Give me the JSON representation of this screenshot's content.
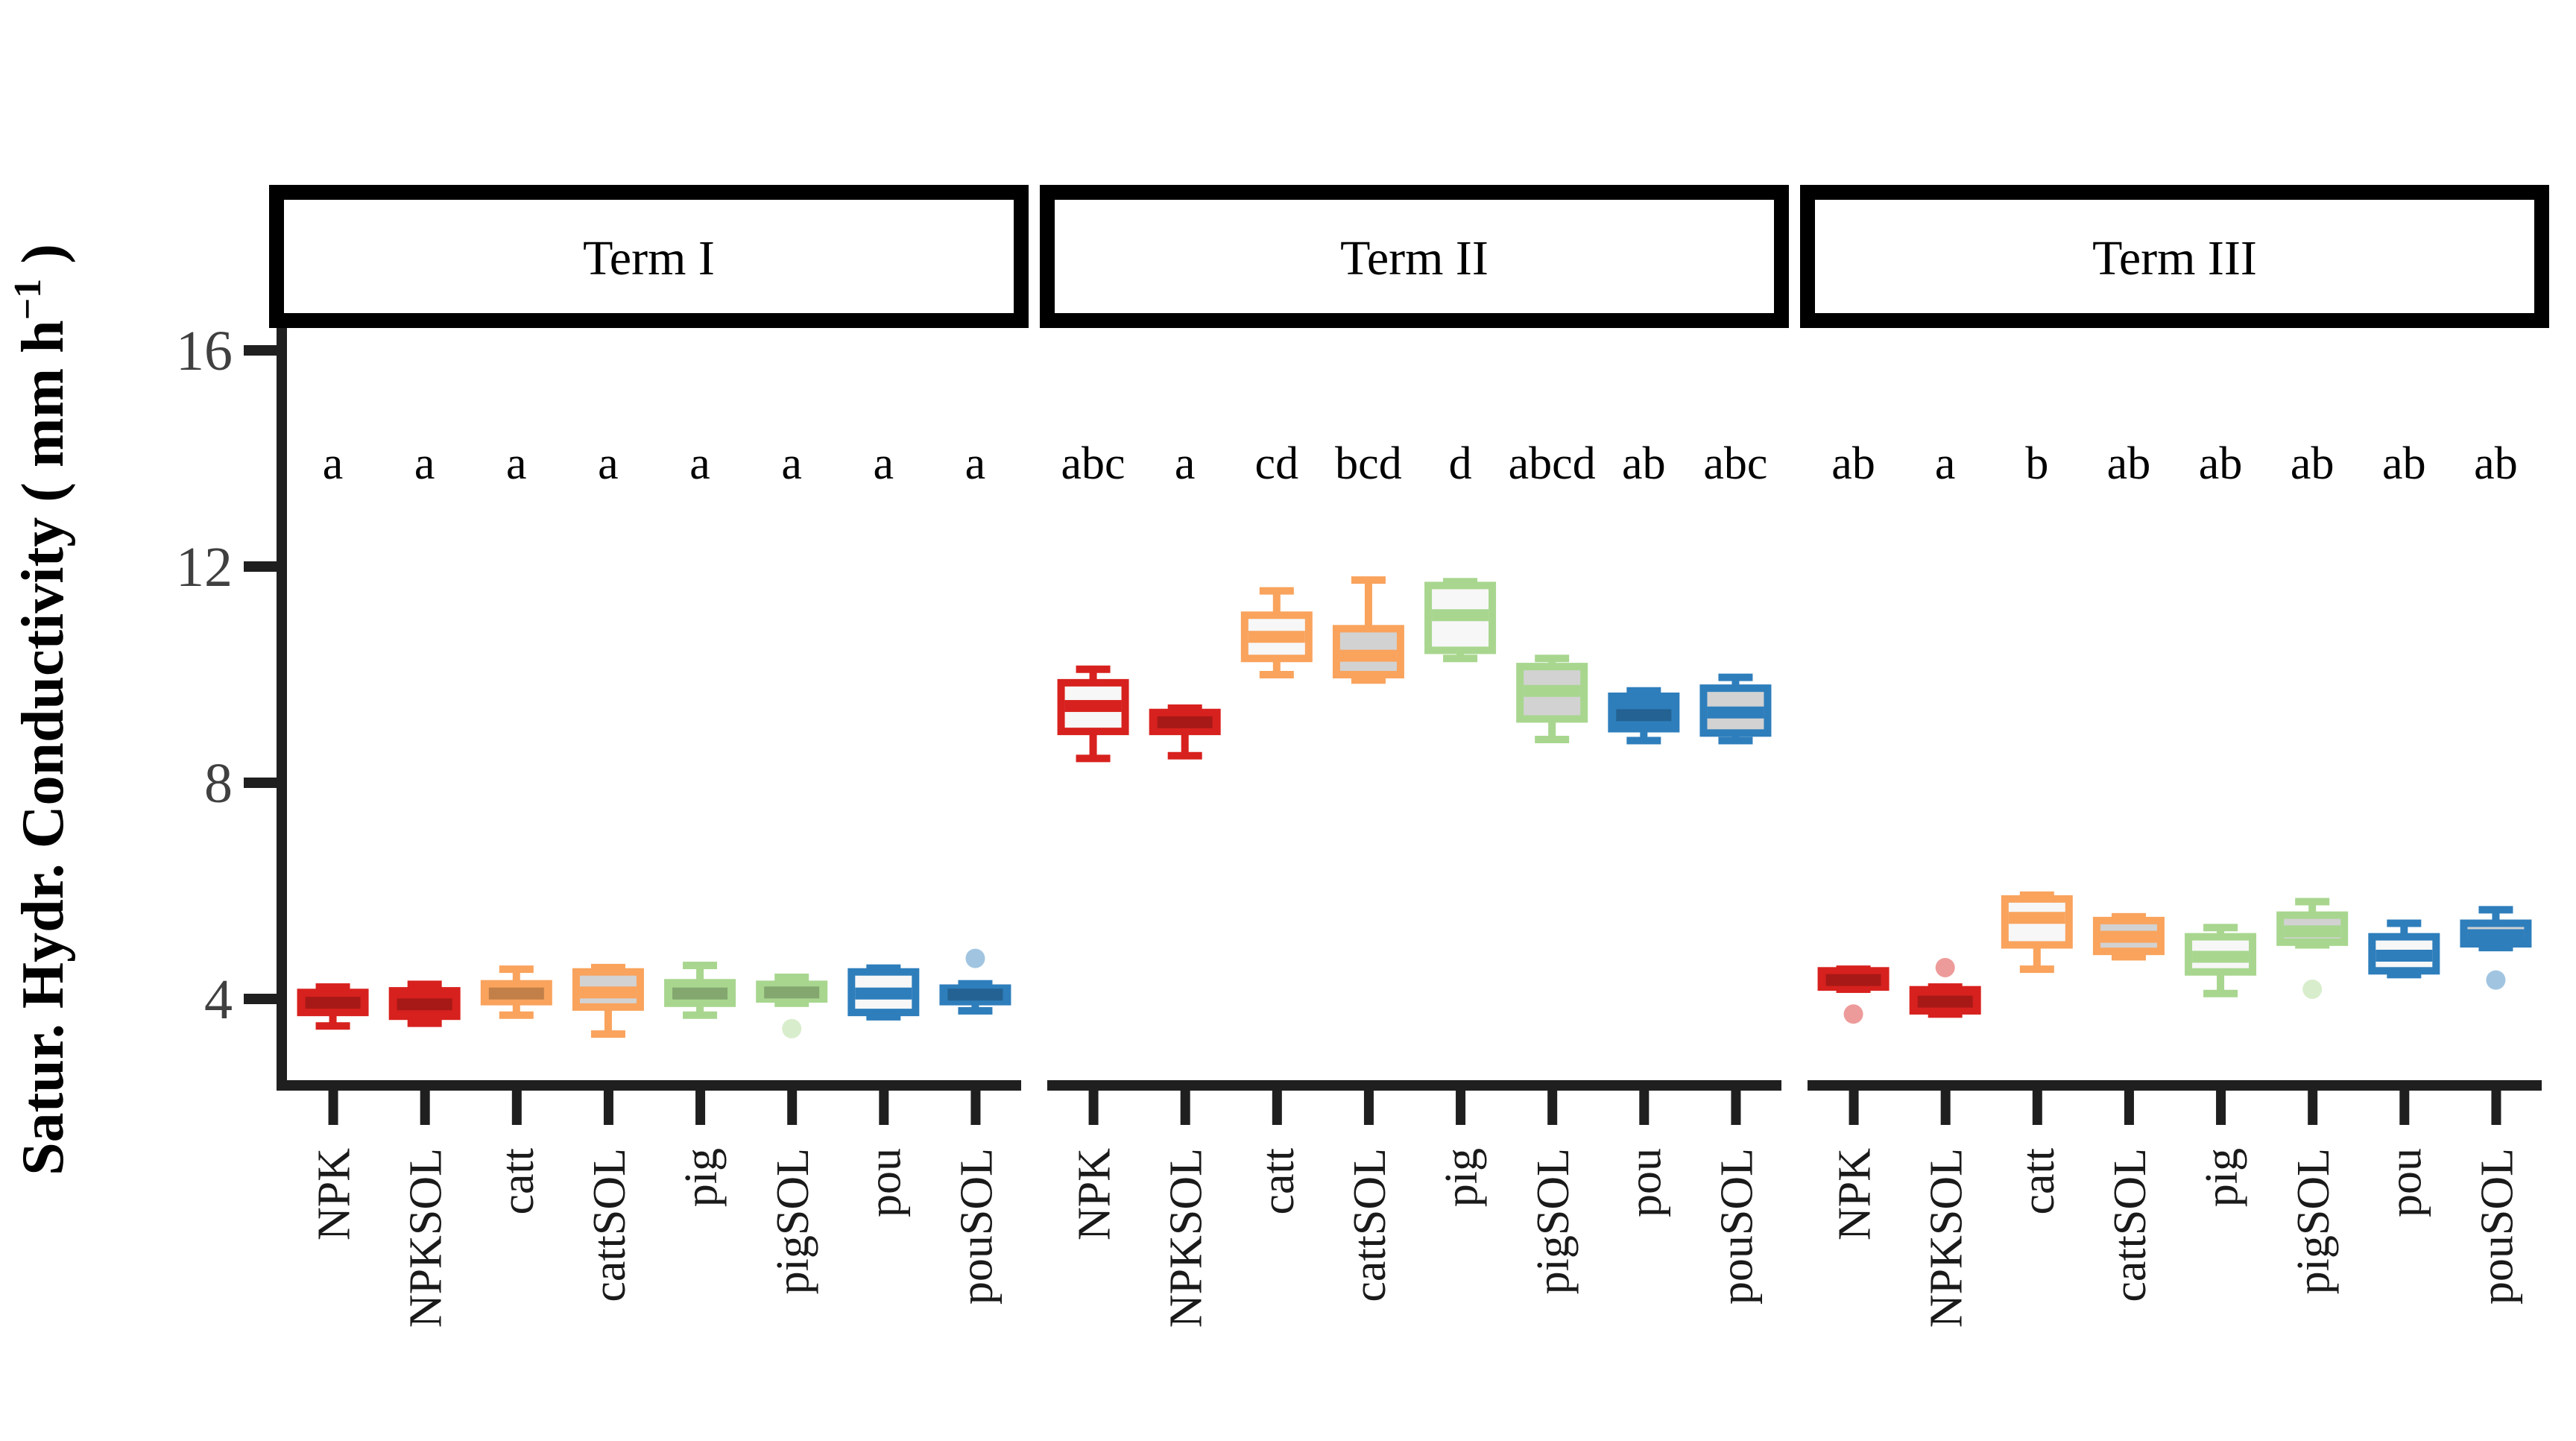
{
  "figure": {
    "background": "#ffffff",
    "axis_color": "#1f1f1f",
    "tick_label_color": "#404040",
    "text_color": "#000000"
  },
  "chart_data": {
    "type": "boxplot",
    "title": "",
    "xlabel": "",
    "ylabel_parts": {
      "pre": "Satur. Hydr. Conductivity ( mm  h",
      "sup": "−1",
      "post": " )"
    },
    "ylabel_plain": "Satur. Hydr. Conductivity ( mm h-1 )",
    "y_ticks": [
      4,
      8,
      12,
      16
    ],
    "ylim": [
      2.4,
      16.6
    ],
    "grid": false,
    "legend": "none",
    "categories": [
      "NPK",
      "NPKSOL",
      "catt",
      "cattSOL",
      "pig",
      "pigSOL",
      "pou",
      "pouSOL"
    ],
    "group_colors": {
      "NPK": "#d7211e",
      "NPKSOL": "#d7211e",
      "catt": "#f9a35d",
      "cattSOL": "#f9a35d",
      "pig": "#a8d68f",
      "pigSOL": "#a8d68f",
      "pou": "#2e7ebc",
      "pouSOL": "#2e7ebc"
    },
    "fill_styles": {
      "white": "#f7f7f7",
      "gray": "#d2d2d2"
    },
    "panels": [
      {
        "label": "Term I",
        "boxes": [
          {
            "cat": "NPK",
            "letter": "a",
            "fill": "solid",
            "lo": 3.5,
            "q1": 3.75,
            "med": 3.93,
            "q3": 4.12,
            "hi": 4.22,
            "outliers": []
          },
          {
            "cat": "NPKSOL",
            "letter": "a",
            "fill": "solid",
            "lo": 3.55,
            "q1": 3.68,
            "med": 3.9,
            "q3": 4.15,
            "hi": 4.27,
            "outliers": []
          },
          {
            "cat": "catt",
            "letter": "a",
            "fill": "solid",
            "lo": 3.7,
            "q1": 3.95,
            "med": 4.1,
            "q3": 4.28,
            "hi": 4.55,
            "outliers": []
          },
          {
            "cat": "cattSOL",
            "letter": "a",
            "fill": "gray",
            "lo": 3.35,
            "q1": 3.85,
            "med": 4.12,
            "q3": 4.5,
            "hi": 4.58,
            "outliers": []
          },
          {
            "cat": "pig",
            "letter": "a",
            "fill": "solid",
            "lo": 3.7,
            "q1": 3.92,
            "med": 4.1,
            "q3": 4.3,
            "hi": 4.62,
            "outliers": []
          },
          {
            "cat": "pigSOL",
            "letter": "a",
            "fill": "solid",
            "lo": 3.92,
            "q1": 4.0,
            "med": 4.12,
            "q3": 4.27,
            "hi": 4.4,
            "outliers": [
              3.45
            ]
          },
          {
            "cat": "pou",
            "letter": "a",
            "fill": "white",
            "lo": 3.67,
            "q1": 3.75,
            "med": 4.1,
            "q3": 4.5,
            "hi": 4.57,
            "outliers": []
          },
          {
            "cat": "pouSOL",
            "letter": "a",
            "fill": "solid",
            "lo": 3.78,
            "q1": 3.95,
            "med": 4.08,
            "q3": 4.2,
            "hi": 4.28,
            "outliers": [
              4.75
            ]
          }
        ]
      },
      {
        "label": "Term II",
        "boxes": [
          {
            "cat": "NPK",
            "letter": "abc",
            "fill": "white",
            "lo": 8.45,
            "q1": 8.95,
            "med": 9.42,
            "q3": 9.85,
            "hi": 10.1,
            "outliers": []
          },
          {
            "cat": "NPKSOL",
            "letter": "a",
            "fill": "solid",
            "lo": 8.5,
            "q1": 8.95,
            "med": 9.12,
            "q3": 9.3,
            "hi": 9.38,
            "outliers": []
          },
          {
            "cat": "catt",
            "letter": "cd",
            "fill": "white",
            "lo": 10.0,
            "q1": 10.3,
            "med": 10.7,
            "q3": 11.1,
            "hi": 11.55,
            "outliers": []
          },
          {
            "cat": "cattSOL",
            "letter": "bcd",
            "fill": "gray",
            "lo": 9.9,
            "q1": 10.0,
            "med": 10.35,
            "q3": 10.85,
            "hi": 11.75,
            "outliers": []
          },
          {
            "cat": "pig",
            "letter": "d",
            "fill": "white",
            "lo": 10.3,
            "q1": 10.45,
            "med": 11.1,
            "q3": 11.65,
            "hi": 11.72,
            "outliers": []
          },
          {
            "cat": "pigSOL",
            "letter": "abcd",
            "fill": "gray",
            "lo": 8.8,
            "q1": 9.18,
            "med": 9.7,
            "q3": 10.15,
            "hi": 10.3,
            "outliers": []
          },
          {
            "cat": "pou",
            "letter": "ab",
            "fill": "solid",
            "lo": 8.78,
            "q1": 9.0,
            "med": 9.25,
            "q3": 9.6,
            "hi": 9.7,
            "outliers": []
          },
          {
            "cat": "pouSOL",
            "letter": "abc",
            "fill": "gray",
            "lo": 8.78,
            "q1": 8.92,
            "med": 9.3,
            "q3": 9.75,
            "hi": 9.95,
            "outliers": []
          }
        ]
      },
      {
        "label": "Term III",
        "boxes": [
          {
            "cat": "NPK",
            "letter": "ab",
            "fill": "solid",
            "lo": 4.18,
            "q1": 4.22,
            "med": 4.35,
            "q3": 4.52,
            "hi": 4.55,
            "outliers": [
              3.72
            ]
          },
          {
            "cat": "NPKSOL",
            "letter": "a",
            "fill": "solid",
            "lo": 3.72,
            "q1": 3.78,
            "med": 3.95,
            "q3": 4.17,
            "hi": 4.22,
            "outliers": [
              4.58
            ]
          },
          {
            "cat": "catt",
            "letter": "b",
            "fill": "white",
            "lo": 4.55,
            "q1": 5.0,
            "med": 5.5,
            "q3": 5.85,
            "hi": 5.92,
            "outliers": []
          },
          {
            "cat": "cattSOL",
            "letter": "ab",
            "fill": "gray",
            "lo": 4.78,
            "q1": 4.88,
            "med": 5.15,
            "q3": 5.45,
            "hi": 5.52,
            "outliers": []
          },
          {
            "cat": "pig",
            "letter": "ab",
            "fill": "white",
            "lo": 4.1,
            "q1": 4.5,
            "med": 4.78,
            "q3": 5.15,
            "hi": 5.32,
            "outliers": []
          },
          {
            "cat": "pigSOL",
            "letter": "ab",
            "fill": "gray",
            "lo": 5.0,
            "q1": 5.05,
            "med": 5.25,
            "q3": 5.55,
            "hi": 5.8,
            "outliers": [
              4.18
            ]
          },
          {
            "cat": "pou",
            "letter": "ab",
            "fill": "white",
            "lo": 4.45,
            "q1": 4.52,
            "med": 4.8,
            "q3": 5.15,
            "hi": 5.4,
            "outliers": []
          },
          {
            "cat": "pouSOL",
            "letter": "ab",
            "fill": "gray",
            "lo": 4.95,
            "q1": 5.02,
            "med": 5.18,
            "q3": 5.4,
            "hi": 5.65,
            "outliers": [
              4.35
            ]
          }
        ]
      }
    ]
  }
}
